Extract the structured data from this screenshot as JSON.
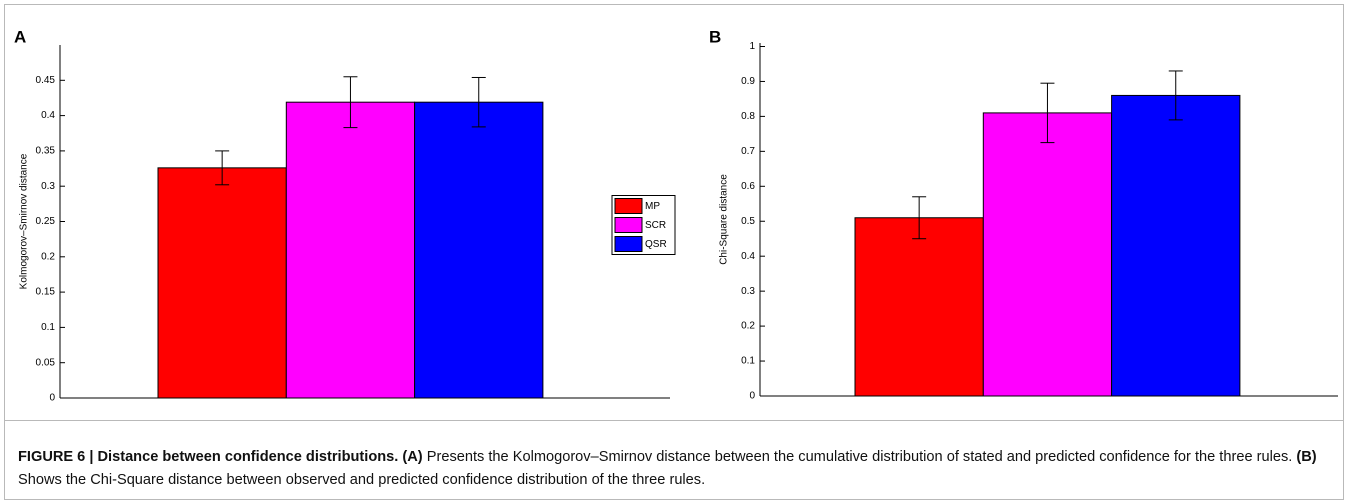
{
  "chart_data": [
    {
      "type": "bar",
      "panel": "A",
      "ylabel": "Kolmogorov–Smirnov distance",
      "ylim": [
        0,
        0.5
      ],
      "yticks": [
        0,
        0.05,
        0.1,
        0.15,
        0.2,
        0.25,
        0.3,
        0.35,
        0.4,
        0.45
      ],
      "legend": "right",
      "series": [
        {
          "name": "MP",
          "color": "#ff0000",
          "values": [
            0.326
          ],
          "errors": [
            0.024
          ]
        },
        {
          "name": "SCR",
          "color": "#ff00ff",
          "values": [
            0.419
          ],
          "errors": [
            0.036
          ]
        },
        {
          "name": "QSR",
          "color": "#0000ff",
          "values": [
            0.419
          ],
          "errors": [
            0.035
          ]
        }
      ]
    },
    {
      "type": "bar",
      "panel": "B",
      "ylabel": "Chi-Square distance",
      "ylim": [
        0,
        1.01
      ],
      "yticks": [
        0,
        0.1,
        0.2,
        0.3,
        0.4,
        0.5,
        0.6,
        0.7,
        0.8,
        0.9,
        1
      ],
      "series": [
        {
          "color": "#ff0000",
          "values": [
            0.51
          ],
          "errors": [
            0.06
          ]
        },
        {
          "color": "#ff00ff",
          "values": [
            0.81
          ],
          "errors": [
            0.085
          ]
        },
        {
          "color": "#0000ff",
          "values": [
            0.86
          ],
          "errors": [
            0.07
          ]
        }
      ]
    }
  ],
  "caption": [
    {
      "text": "FIGURE 6 | Distance between confidence distributions.",
      "bold": true
    },
    {
      "text": "(A)",
      "bold": true
    },
    {
      "text": "Presents the Kolmogorov–Smirnov distance between the cumulative distribution of stated and predicted confidence for the three rules.",
      "bold": false
    },
    {
      "text": "(B)",
      "bold": true
    },
    {
      "text": "Shows the Chi-Square distance between observed and predicted confidence distribution of the three rules.",
      "bold": false
    }
  ]
}
